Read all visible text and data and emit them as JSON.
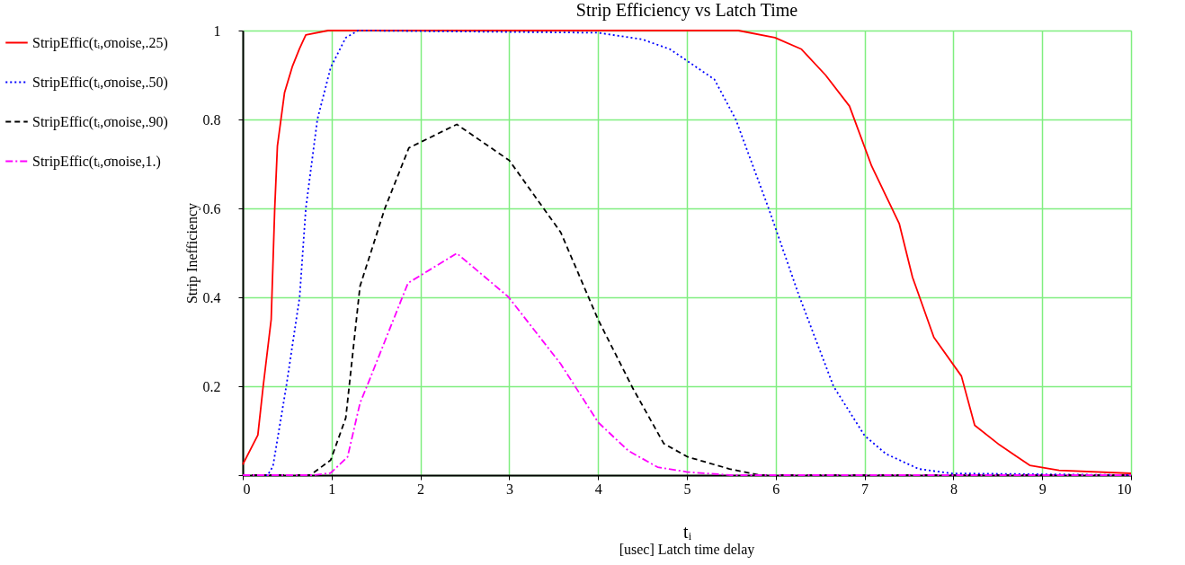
{
  "chart_data": {
    "type": "line",
    "title": "Strip Efficiency vs Latch Time",
    "xlabel": "tᵢ",
    "ylabel": "Strip Inefficiency",
    "annotations": [
      "[usec] Latch time delay"
    ],
    "xlim": [
      0,
      10
    ],
    "xticks": [
      0,
      1,
      2,
      3,
      4,
      5,
      6,
      7,
      8,
      9,
      10
    ],
    "ylim": [
      0,
      1
    ],
    "yticks": [
      {
        "value": 0,
        "label": null
      },
      0.2,
      0.4,
      0.6,
      0.8,
      1
    ],
    "grid": true,
    "legend": "left",
    "series": [
      {
        "name": "StripEffic(tᵢ,σnoise,.25)",
        "color": "#ff0000",
        "line_style": "solid",
        "x": [
          0,
          0.17,
          0.23,
          0.32,
          0.36,
          0.39,
          0.47,
          0.56,
          0.64,
          0.71,
          0.96,
          5.58,
          5.99,
          6.29,
          6.56,
          6.83,
          7.08,
          7.39,
          7.54,
          7.78,
          8.09,
          8.24,
          8.52,
          8.86,
          9.19,
          10
        ],
        "values": [
          0.024,
          0.09,
          0.2,
          0.35,
          0.6,
          0.74,
          0.86,
          0.92,
          0.96,
          0.99,
          1.0,
          1.0,
          0.984,
          0.958,
          0.9,
          0.83,
          0.695,
          0.566,
          0.445,
          0.31,
          0.223,
          0.112,
          0.068,
          0.022,
          0.011,
          0.004
        ]
      },
      {
        "name": "StripEffic(tᵢ,σnoise,.50)",
        "color": "#0000ff",
        "line_style": "dotted",
        "x": [
          0,
          0.28,
          0.34,
          0.49,
          0.64,
          0.71,
          0.84,
          0.99,
          1.16,
          1.3,
          4.0,
          4.5,
          4.81,
          5.31,
          5.55,
          5.92,
          6.26,
          6.65,
          7.0,
          7.24,
          7.61,
          7.98,
          10
        ],
        "values": [
          0,
          0,
          0.02,
          0.2,
          0.4,
          0.6,
          0.8,
          0.917,
          0.984,
          1.0,
          0.995,
          0.98,
          0.958,
          0.89,
          0.8,
          0.6,
          0.405,
          0.2,
          0.089,
          0.048,
          0.014,
          0.004,
          0
        ]
      },
      {
        "name": "StripEffic(tᵢ,σnoise,.90)",
        "color": "#000000",
        "line_style": "dashed",
        "x": [
          0,
          0.76,
          0.99,
          1.16,
          1.32,
          1.6,
          1.87,
          2.41,
          3.0,
          3.58,
          4.0,
          4.39,
          4.74,
          5.01,
          5.48,
          5.82,
          10
        ],
        "values": [
          0,
          0,
          0.034,
          0.129,
          0.425,
          0.6,
          0.736,
          0.789,
          0.708,
          0.546,
          0.35,
          0.196,
          0.071,
          0.041,
          0.014,
          0,
          0
        ]
      },
      {
        "name": "StripEffic(tᵢ,σnoise,1.)",
        "color": "#ff00ff",
        "line_style": "dashdot",
        "x": [
          0,
          0.8,
          0.99,
          1.18,
          1.32,
          1.43,
          1.86,
          2.41,
          2.99,
          3.58,
          4.0,
          4.34,
          4.67,
          5.01,
          5.5,
          10
        ],
        "values": [
          0,
          0,
          0.005,
          0.041,
          0.162,
          0.216,
          0.432,
          0.499,
          0.401,
          0.25,
          0.119,
          0.055,
          0.018,
          0.007,
          0,
          0
        ]
      }
    ]
  }
}
